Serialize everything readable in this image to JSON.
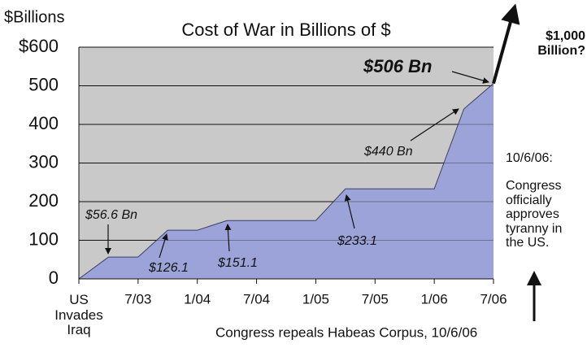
{
  "chart_data": {
    "type": "area",
    "title": "Cost of War in Billions of $",
    "y_label": "$Billions",
    "x": [
      0,
      0.5,
      1,
      1.5,
      2,
      2.5,
      3,
      4,
      4.5,
      5,
      6,
      6.5,
      7
    ],
    "values": [
      0,
      56.6,
      56.6,
      126.1,
      126.1,
      151.1,
      151.1,
      151.1,
      233.1,
      233.1,
      233.1,
      440,
      506
    ],
    "value_labels": [
      null,
      "$56.6 Bn",
      null,
      "$126.1",
      null,
      "$151.1",
      null,
      null,
      "$233.1",
      null,
      null,
      "$440 Bn",
      "$506 Bn"
    ],
    "color": "#9ba3d8",
    "plot_background": "#c9c9c9",
    "xlim": [
      0,
      7
    ],
    "xticks": [
      {
        "value": 0,
        "label": "US Invades Iraq"
      },
      {
        "value": 1,
        "label": "7/03"
      },
      {
        "value": 2,
        "label": "1/04"
      },
      {
        "value": 3,
        "label": "7/04"
      },
      {
        "value": 4,
        "label": "1/05"
      },
      {
        "value": 5,
        "label": "7/05"
      },
      {
        "value": 6,
        "label": "1/06"
      },
      {
        "value": 7,
        "label": "7/06"
      }
    ],
    "ylim": [
      0,
      600
    ],
    "yticks": [
      0,
      100,
      200,
      300,
      400,
      500,
      {
        "value": 600,
        "label": "$600"
      }
    ],
    "grid": true,
    "annotations": {
      "projection": "$1,000 Billion?",
      "date": "10/6/06:",
      "note": "Congress officially approves tyranny in the US.",
      "bottom": "Congress repeals Habeas Corpus, 10/6/06"
    }
  }
}
